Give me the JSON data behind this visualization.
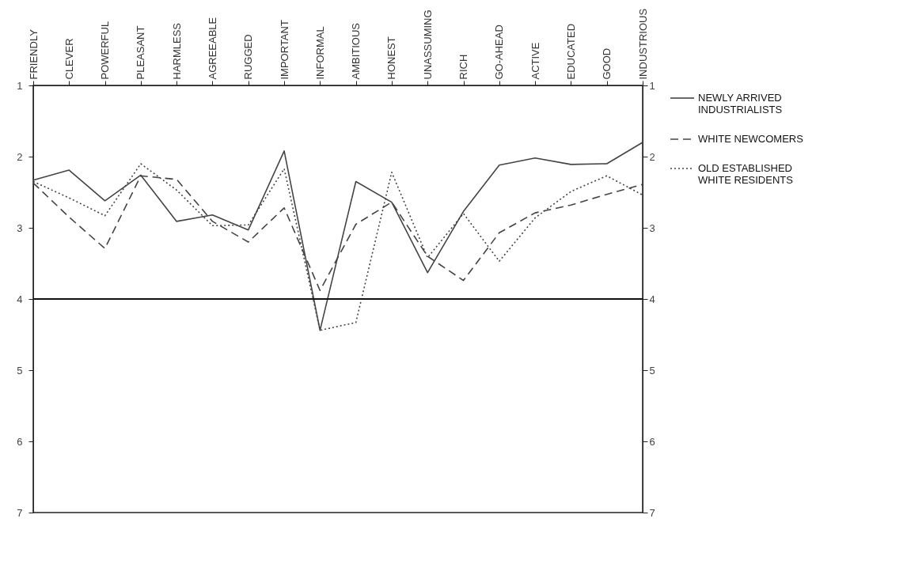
{
  "chart_data": {
    "type": "line",
    "categories": [
      "FRIENDLY",
      "CLEVER",
      "POWERFUL",
      "PLEASANT",
      "HARMLESS",
      "AGREEABLE",
      "RUGGED",
      "IMPORTANT",
      "INFORMAL",
      "AMBITIOUS",
      "HONEST",
      "UNASSUMING",
      "RICH",
      "GO-AHEAD",
      "ACTIVE",
      "EDUCATED",
      "GOOD",
      "INDUSTRIOUS"
    ],
    "series": [
      {
        "name": "NEWLY ARRIVED INDUSTRIALISTS",
        "color": "#444444",
        "line_style": "solid",
        "values": [
          2.33,
          2.19,
          2.62,
          2.26,
          2.91,
          2.82,
          3.03,
          1.92,
          4.44,
          2.35,
          2.64,
          3.63,
          2.77,
          2.12,
          2.02,
          2.11,
          2.1,
          1.8
        ]
      },
      {
        "name": "WHITE NEWCOMERS",
        "color": "#444444",
        "line_style": "dashed",
        "values": [
          2.37,
          2.85,
          3.29,
          2.27,
          2.32,
          2.91,
          3.2,
          2.72,
          3.88,
          2.95,
          2.64,
          3.4,
          3.74,
          3.07,
          2.79,
          2.68,
          2.53,
          2.39
        ]
      },
      {
        "name": "OLD ESTABLISHED WHITE RESIDENTS",
        "color": "#444444",
        "line_style": "dotted",
        "values": [
          2.35,
          2.58,
          2.83,
          2.1,
          2.47,
          2.97,
          2.96,
          2.17,
          4.44,
          4.33,
          2.22,
          3.42,
          2.8,
          3.47,
          2.86,
          2.49,
          2.27,
          2.54
        ]
      }
    ],
    "ylim": [
      7,
      1
    ],
    "yticks": [
      1,
      2,
      3,
      4,
      5,
      6,
      7
    ],
    "y2lim": [
      7,
      1
    ],
    "y2ticks": [
      1,
      2,
      3,
      4,
      5,
      6,
      7
    ],
    "ref_lines": [
      {
        "axis": "y",
        "value": 4,
        "color": "#111111"
      }
    ],
    "grid": false,
    "legend": "right",
    "marker": "none"
  }
}
